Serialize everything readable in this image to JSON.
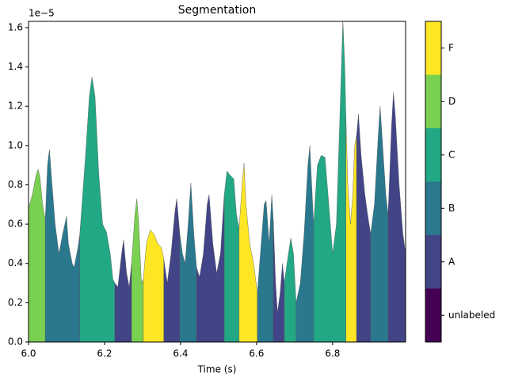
{
  "chart_data": {
    "type": "segmented_area",
    "title": "Segmentation",
    "x_label": "Time (s)",
    "y_offset_label": "1e−5",
    "xlim": [
      6.0,
      6.992
    ],
    "xticks": [
      {
        "value": 6.0,
        "label": "6.0"
      },
      6.2,
      6.4,
      6.6,
      6.8
    ],
    "ylim": [
      0,
      1.632
    ],
    "yticks": [
      {
        "value": 0,
        "label": "0.0"
      },
      0.2,
      0.4,
      0.6,
      0.8,
      {
        "value": 1,
        "label": "1.0"
      },
      1.2,
      1.4,
      1.6
    ],
    "classes": [
      "unlabeled",
      "A",
      "B",
      "C",
      "D",
      "F"
    ],
    "class_colors": [
      "#440154",
      "#414487",
      "#2a788e",
      "#22a884",
      "#7ad151",
      "#fde725"
    ],
    "segments": [
      {
        "class": 4,
        "x": [
          6.0,
          6.01,
          6.02,
          6.025,
          6.03,
          6.037,
          6.044
        ],
        "values": [
          0.68,
          0.75,
          0.85,
          0.88,
          0.84,
          0.7,
          0.62
        ]
      },
      {
        "class": 2,
        "x": [
          6.044,
          6.05,
          6.055,
          6.06,
          6.07,
          6.08,
          6.09,
          6.1,
          6.105,
          6.115,
          6.12,
          6.13,
          6.135
        ],
        "values": [
          0.62,
          0.9,
          0.98,
          0.85,
          0.6,
          0.45,
          0.55,
          0.64,
          0.5,
          0.4,
          0.38,
          0.48,
          0.55
        ]
      },
      {
        "class": 3,
        "x": [
          6.135,
          6.15,
          6.16,
          6.167,
          6.175,
          6.185,
          6.195,
          6.205,
          6.215,
          6.222,
          6.227
        ],
        "values": [
          0.55,
          0.95,
          1.25,
          1.35,
          1.25,
          0.85,
          0.6,
          0.56,
          0.45,
          0.32,
          0.3
        ]
      },
      {
        "class": 1,
        "x": [
          6.227,
          6.235,
          6.245,
          6.25,
          6.258,
          6.265,
          6.271
        ],
        "values": [
          0.3,
          0.28,
          0.45,
          0.52,
          0.35,
          0.28,
          0.4
        ]
      },
      {
        "class": 4,
        "x": [
          6.271,
          6.28,
          6.285,
          6.29,
          6.297,
          6.302
        ],
        "values": [
          0.4,
          0.65,
          0.73,
          0.6,
          0.3,
          0.32
        ]
      },
      {
        "class": 5,
        "x": [
          6.302,
          6.31,
          6.32,
          6.33,
          6.34,
          6.35,
          6.356
        ],
        "values": [
          0.32,
          0.5,
          0.57,
          0.55,
          0.5,
          0.48,
          0.42
        ]
      },
      {
        "class": 1,
        "x": [
          6.356,
          6.365,
          6.375,
          6.385,
          6.39,
          6.398
        ],
        "values": [
          0.42,
          0.3,
          0.45,
          0.66,
          0.73,
          0.55
        ]
      },
      {
        "class": 2,
        "x": [
          6.398,
          6.405,
          6.412,
          6.42,
          6.427,
          6.435,
          6.442
        ],
        "values": [
          0.55,
          0.45,
          0.4,
          0.6,
          0.81,
          0.55,
          0.38
        ]
      },
      {
        "class": 1,
        "x": [
          6.442,
          6.45,
          6.46,
          6.47,
          6.475,
          6.485,
          6.495,
          6.505,
          6.515
        ],
        "values": [
          0.38,
          0.33,
          0.45,
          0.7,
          0.75,
          0.5,
          0.35,
          0.45,
          0.75
        ]
      },
      {
        "class": 3,
        "x": [
          6.515,
          6.522,
          6.53,
          6.54,
          6.547,
          6.554
        ],
        "values": [
          0.75,
          0.87,
          0.85,
          0.83,
          0.65,
          0.58
        ]
      },
      {
        "class": 5,
        "x": [
          6.554,
          6.562,
          6.567,
          6.572,
          6.582,
          6.592,
          6.602
        ],
        "values": [
          0.58,
          0.8,
          0.91,
          0.7,
          0.5,
          0.4,
          0.25
        ]
      },
      {
        "class": 2,
        "x": [
          6.602,
          6.61,
          6.62,
          6.625,
          6.633,
          6.64,
          6.644
        ],
        "values": [
          0.25,
          0.45,
          0.7,
          0.72,
          0.5,
          0.75,
          0.62
        ]
      },
      {
        "class": 1,
        "x": [
          6.644,
          6.65,
          6.655,
          6.662,
          6.668,
          6.673
        ],
        "values": [
          0.62,
          0.3,
          0.15,
          0.25,
          0.4,
          0.3
        ]
      },
      {
        "class": 3,
        "x": [
          6.673,
          6.68,
          6.69,
          6.697,
          6.704
        ],
        "values": [
          0.3,
          0.4,
          0.53,
          0.45,
          0.2
        ]
      },
      {
        "class": 2,
        "x": [
          6.704,
          6.715,
          6.725,
          6.735,
          6.74,
          6.745,
          6.75
        ],
        "values": [
          0.2,
          0.3,
          0.55,
          0.9,
          1.0,
          0.8,
          0.6
        ]
      },
      {
        "class": 3,
        "x": [
          6.75,
          6.76,
          6.77,
          6.78,
          6.79,
          6.8,
          6.81,
          6.82,
          6.827,
          6.832,
          6.835
        ],
        "values": [
          0.6,
          0.9,
          0.95,
          0.94,
          0.7,
          0.45,
          0.6,
          1.2,
          1.64,
          1.4,
          1.15
        ]
      },
      {
        "class": 5,
        "x": [
          6.835,
          6.84,
          6.847,
          6.853,
          6.858,
          6.863
        ],
        "values": [
          1.15,
          0.8,
          0.6,
          0.75,
          1.0,
          1.05
        ]
      },
      {
        "class": 1,
        "x": [
          6.863,
          6.868,
          6.875,
          6.885,
          6.892,
          6.9
        ],
        "values": [
          1.05,
          1.16,
          0.95,
          0.75,
          0.65,
          0.55
        ]
      },
      {
        "class": 2,
        "x": [
          6.9,
          6.91,
          6.92,
          6.925,
          6.93,
          6.94,
          6.946
        ],
        "values": [
          0.55,
          0.7,
          1.05,
          1.2,
          1.05,
          0.75,
          0.65
        ]
      },
      {
        "class": 1,
        "x": [
          6.946,
          6.955,
          6.96,
          6.965,
          6.975,
          6.985,
          6.992
        ],
        "values": [
          0.65,
          1.1,
          1.27,
          1.15,
          0.8,
          0.55,
          0.45
        ]
      }
    ]
  }
}
